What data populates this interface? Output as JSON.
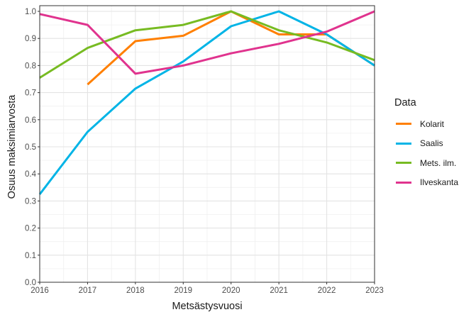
{
  "chart_data": {
    "type": "line",
    "title": "",
    "xlabel": "Metsästysvuosi",
    "ylabel": "Osuus maksimiarvosta",
    "x": [
      2016,
      2017,
      2018,
      2019,
      2020,
      2021,
      2022,
      2023
    ],
    "xlim": [
      2016,
      2023
    ],
    "ylim": [
      0.0,
      1.0
    ],
    "x_ticks": [
      "2016",
      "2017",
      "2018",
      "2019",
      "2020",
      "2021",
      "2022",
      "2023"
    ],
    "y_ticks": [
      "0.0",
      "0.1",
      "0.2",
      "0.3",
      "0.4",
      "0.5",
      "0.6",
      "0.7",
      "0.8",
      "0.9",
      "1.0"
    ],
    "grid": true,
    "legend_position": "right",
    "legend_title": "Data",
    "series": [
      {
        "name": "Kolarit",
        "color": "#FF7F00",
        "values": [
          null,
          0.73,
          0.89,
          0.91,
          1.0,
          0.915,
          0.915,
          0.8
        ]
      },
      {
        "name": "Saalis",
        "color": "#00B4E6",
        "values": [
          0.325,
          0.555,
          0.715,
          0.815,
          0.945,
          1.0,
          0.915,
          0.8
        ]
      },
      {
        "name": "Mets. ilm.",
        "color": "#77BB22",
        "values": [
          0.755,
          0.865,
          0.93,
          0.95,
          1.0,
          0.93,
          0.885,
          0.82
        ]
      },
      {
        "name": "Ilveskanta",
        "color": "#E0338E",
        "values": [
          0.99,
          0.95,
          0.77,
          0.8,
          0.845,
          0.88,
          0.925,
          1.0
        ]
      }
    ]
  },
  "legend": {
    "title": "Data",
    "items": [
      {
        "label": "Kolarit",
        "color": "#FF7F00"
      },
      {
        "label": "Saalis",
        "color": "#00B4E6"
      },
      {
        "label": "Mets. ilm.",
        "color": "#77BB22"
      },
      {
        "label": "Ilveskanta",
        "color": "#E0338E"
      }
    ]
  }
}
